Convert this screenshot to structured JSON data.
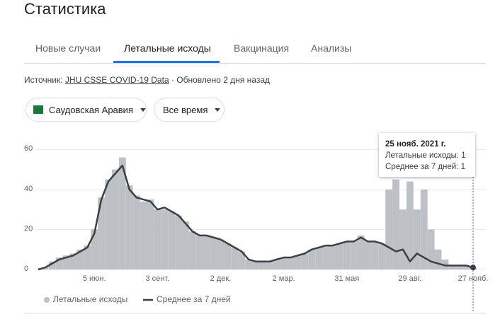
{
  "header": {
    "title": "Статистика"
  },
  "tabs": [
    "Новые случаи",
    "Летальные исходы",
    "Вакцинация",
    "Анализы"
  ],
  "source": {
    "label": "Источник:",
    "link": "JHU CSSE COVID-19 Data",
    "updated": "· Обновлено 2 дня назад"
  },
  "filters": [
    "Саудовская Аравия",
    "Все время"
  ],
  "tooltip": {
    "date": "25 нояб. 2021 г.",
    "line1": "Летальные исходы: 1",
    "line2": "Среднее за 7 дней: 1"
  },
  "chart_data": {
    "type": "bar",
    "categories": [
      null,
      null,
      null,
      null,
      null,
      null,
      null,
      null,
      "5 июн.",
      null,
      null,
      null,
      null,
      null,
      null,
      null,
      null,
      "3 сент.",
      null,
      null,
      null,
      null,
      null,
      null,
      null,
      null,
      "2 дек.",
      null,
      null,
      null,
      null,
      null,
      null,
      null,
      null,
      "2 мар.",
      null,
      null,
      null,
      null,
      null,
      null,
      null,
      null,
      "31 мая",
      null,
      null,
      null,
      null,
      null,
      null,
      null,
      null,
      "29 авг.",
      null,
      null,
      null,
      null,
      null,
      null,
      null,
      null,
      "27 нояб."
    ],
    "series": [
      {
        "name": "Летальные исходы",
        "type": "bar",
        "color": "#bdc1c6",
        "values": [
          0,
          1,
          4,
          6,
          7,
          8,
          10,
          12,
          20,
          36,
          45,
          50,
          56,
          42,
          37,
          34,
          35,
          30,
          30,
          29,
          27,
          24,
          19,
          17,
          17,
          16,
          15,
          13,
          11,
          9,
          5,
          4,
          4,
          4,
          5,
          6,
          6,
          7,
          8,
          10,
          11,
          12,
          12,
          13,
          14,
          14,
          17,
          14,
          14,
          13,
          40,
          45,
          30,
          44,
          30,
          40,
          20,
          10,
          5,
          2,
          2,
          2,
          1
        ]
      },
      {
        "name": "Среднее за 7 дней",
        "type": "line",
        "color": "#3c4043",
        "values": [
          0,
          1,
          3,
          5,
          6,
          7,
          9,
          11,
          18,
          35,
          44,
          48,
          52,
          40,
          36,
          35,
          34,
          30,
          31,
          29,
          27,
          23,
          19,
          17,
          17,
          16,
          15,
          13,
          11,
          9,
          5,
          4,
          4,
          4,
          5,
          6,
          6,
          7,
          8,
          10,
          11,
          12,
          12,
          13,
          14,
          14,
          16,
          14,
          14,
          13,
          11,
          9,
          10,
          4,
          8,
          6,
          4,
          3,
          2,
          2,
          2,
          2,
          1
        ]
      }
    ],
    "ylim": [
      0,
      64
    ],
    "yticks": [
      0,
      20,
      40,
      60
    ],
    "grid": true
  }
}
